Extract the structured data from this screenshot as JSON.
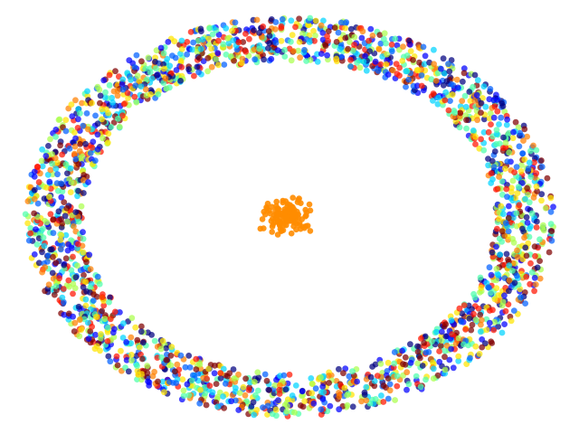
{
  "chart_data": {
    "type": "scatter",
    "title": "",
    "xlabel": "",
    "ylabel": "",
    "axes_visible": false,
    "grid": false,
    "legend": "none",
    "background": "#ffffff",
    "palette": [
      "#00007f",
      "#0000ff",
      "#0060ff",
      "#00d4ff",
      "#4cffaa",
      "#aaff4c",
      "#ffe500",
      "#ff8000",
      "#ff1300",
      "#7f0000"
    ],
    "series": [
      {
        "shape": "ring",
        "point_count": 2400,
        "center": [
          320,
          240
        ],
        "radius_x": [
          228,
          292
        ],
        "radius_y": [
          173,
          221
        ],
        "marker_radius": 3.4,
        "opacity": 0.72,
        "color_mode": "random-jet"
      },
      {
        "shape": "cluster",
        "point_count": 130,
        "center": [
          315,
          240
        ],
        "spread": [
          15,
          12
        ],
        "marker_radius": 3.3,
        "opacity": 0.9,
        "color": "#ff8c00"
      }
    ]
  }
}
